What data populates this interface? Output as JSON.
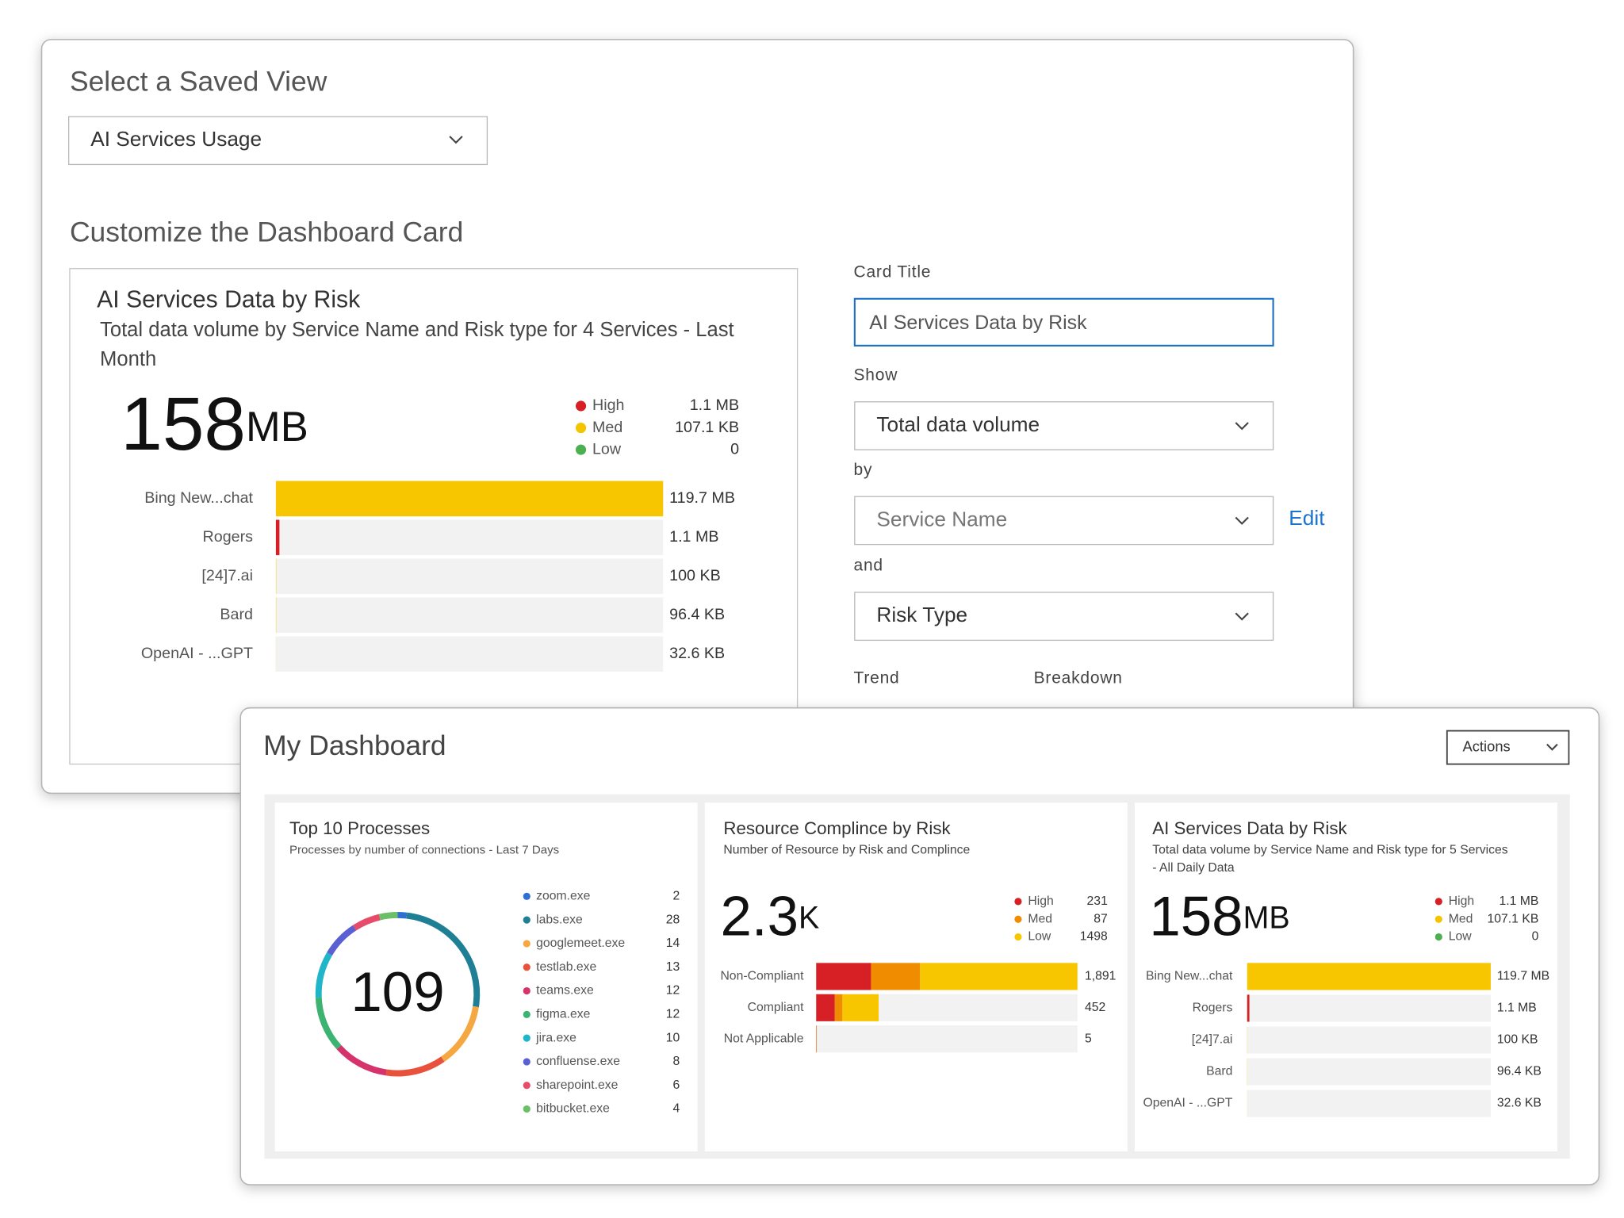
{
  "saved_view": {
    "heading": "Select a Saved View",
    "selected": "AI Services Usage"
  },
  "customize": {
    "heading": "Customize the Dashboard Card",
    "preview": {
      "type": "bar",
      "title": "AI Services Data by Risk",
      "subtitle": "Total data volume by Service Name and Risk type for 4 Services - Last Month",
      "total": "158",
      "total_unit": "MB",
      "legend": [
        {
          "name": "High",
          "value": "1.1 MB",
          "color": "#d71f26"
        },
        {
          "name": "Med",
          "value": "107.1 KB",
          "color": "#f5c400"
        },
        {
          "name": "Low",
          "value": "0",
          "color": "#4caf50"
        }
      ],
      "categories": [
        "Bing New...chat",
        "Rogers",
        "[24]7.ai",
        "Bard",
        "OpenAI - ...GPT"
      ],
      "values": [
        119700,
        1100,
        100,
        96.4,
        32.6
      ],
      "value_labels": [
        "119.7 MB",
        "1.1 MB",
        "100 KB",
        "96.4 KB",
        "32.6 KB"
      ],
      "colors": [
        "#f7c600",
        "#d71f26",
        "#f7c600",
        "#f7c600",
        "#f7c600"
      ]
    },
    "form": {
      "card_title_label": "Card Title",
      "card_title": "AI Services Data by Risk",
      "show_label": "Show",
      "show": "Total data volume",
      "by_label": "by",
      "by": "Service Name",
      "edit": "Edit",
      "and_label": "and",
      "and": "Risk Type",
      "trend_label": "Trend",
      "breakdown_label": "Breakdown"
    }
  },
  "dashboard": {
    "title": "My Dashboard",
    "actions": "Actions",
    "cards": [
      {
        "type": "donut",
        "title": "Top 10 Processes",
        "subtitle": "Processes by number of connections - Last 7 Days",
        "total": 109,
        "categories": [
          "zoom.exe",
          "labs.exe",
          "googlemeet.exe",
          "testlab.exe",
          "teams.exe",
          "figma.exe",
          "jira.exe",
          "confluense.exe",
          "sharepoint.exe",
          "bitbucket.exe"
        ],
        "values": [
          2,
          28,
          14,
          13,
          12,
          12,
          10,
          8,
          6,
          4
        ],
        "colors": [
          "#2f6fd1",
          "#1f7f95",
          "#f5a742",
          "#e8513b",
          "#d6336c",
          "#3cb371",
          "#20b5c8",
          "#5a5fd1",
          "#e84a6a",
          "#6dbf67"
        ]
      },
      {
        "type": "stacked_bar",
        "title": "Resource Complince by Risk",
        "subtitle": "Number of Resource by Risk and Complince",
        "total": "2.3",
        "total_unit": "K",
        "categories": [
          "Non-Compliant",
          "Compliant",
          "Not Applicable"
        ],
        "series": [
          {
            "name": "High",
            "color": "#d71f26",
            "values": [
              397,
              135,
              3
            ]
          },
          {
            "name": "Med",
            "color": "#f08c00",
            "values": [
              355,
              55,
              0
            ]
          },
          {
            "name": "Low",
            "color": "#f7c600",
            "values": [
              1139,
              262,
              2
            ]
          }
        ],
        "legend_values": [
          231,
          87,
          1498
        ],
        "totals": [
          1891,
          452,
          5
        ],
        "total_labels": [
          "1,891",
          "452",
          "5"
        ]
      },
      {
        "type": "bar",
        "title": "AI Services Data by Risk",
        "subtitle": "Total data volume by Service Name and Risk type for 5 Services - All Daily Data",
        "total": "158",
        "total_unit": "MB",
        "legend": [
          {
            "name": "High",
            "value": "1.1 MB",
            "color": "#d71f26"
          },
          {
            "name": "Med",
            "value": "107.1 KB",
            "color": "#f5c400"
          },
          {
            "name": "Low",
            "value": "0",
            "color": "#4caf50"
          }
        ],
        "categories": [
          "Bing New...chat",
          "Rogers",
          "[24]7.ai",
          "Bard",
          "OpenAI - ...GPT"
        ],
        "values": [
          119700,
          1100,
          100,
          96.4,
          32.6
        ],
        "value_labels": [
          "119.7 MB",
          "1.1 MB",
          "100 KB",
          "96.4 KB",
          "32.6 KB"
        ],
        "colors": [
          "#f7c600",
          "#d71f26",
          "#f7c600",
          "#f7c600",
          "#f7c600"
        ]
      }
    ]
  }
}
